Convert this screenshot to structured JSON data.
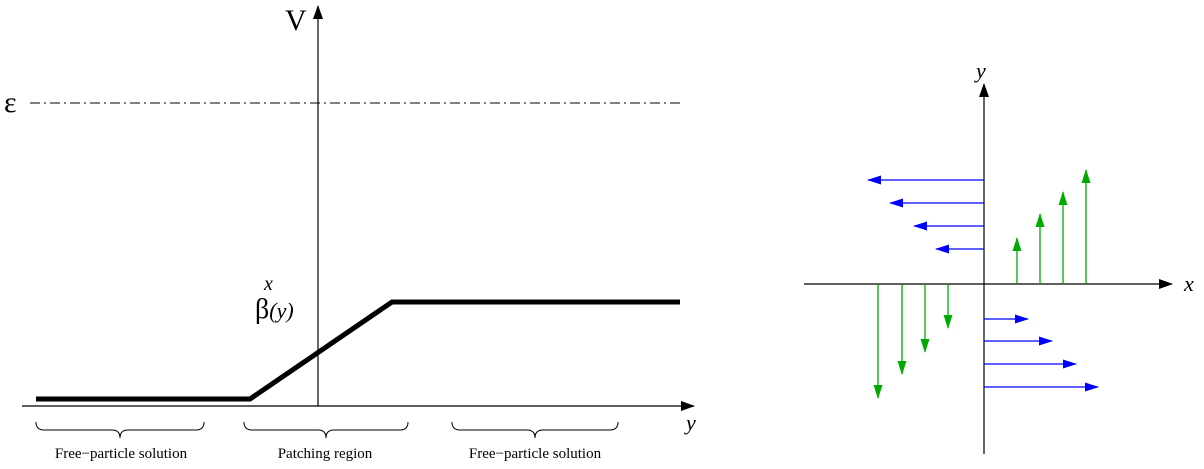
{
  "left_panel": {
    "v_axis_label": "V",
    "y_axis_label": "y",
    "epsilon_label": "ε",
    "beta_label": "β",
    "beta_superscript": "x",
    "beta_argument": "(y)",
    "regions": [
      {
        "label": "Free−particle solution"
      },
      {
        "label": "Patching region"
      },
      {
        "label": "Free−particle solution"
      }
    ]
  },
  "right_panel": {
    "x_axis_label": "x",
    "y_axis_label": "y",
    "colors": {
      "blue": "#0000ff",
      "green": "#00aa00"
    }
  }
}
